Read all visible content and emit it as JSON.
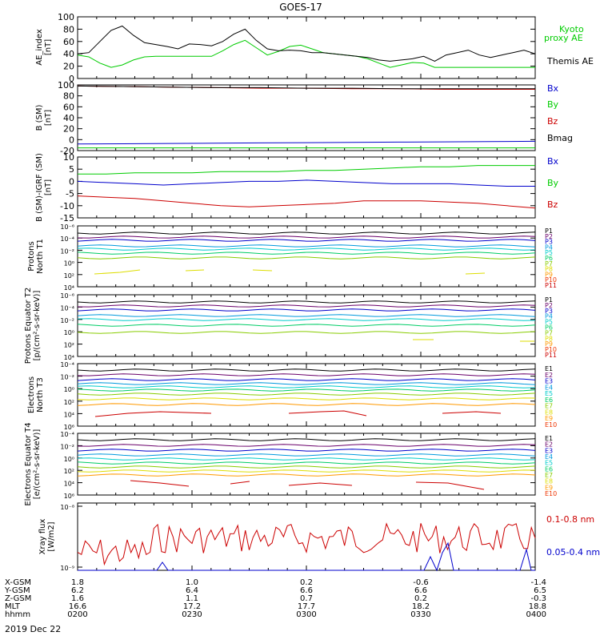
{
  "title": "GOES-17",
  "date_label": "2019 Dec 22",
  "ephemeris": {
    "row_labels": [
      "X-GSM",
      "Y-GSM",
      "Z-GSM",
      "MLT",
      "hhmm"
    ],
    "columns": [
      {
        "values": [
          "1.8",
          "6.2",
          "1.6",
          "16.6",
          "0200"
        ]
      },
      {
        "values": [
          "1.0",
          "6.4",
          "1.1",
          "17.2",
          "0230"
        ]
      },
      {
        "values": [
          "0.2",
          "6.6",
          "0.7",
          "17.7",
          "0300"
        ]
      },
      {
        "values": [
          "-0.6",
          "6.6",
          "0.2",
          "18.2",
          "0330"
        ]
      },
      {
        "values": [
          "-1.4",
          "6.5",
          "-0.3",
          "18.8",
          "0400"
        ]
      }
    ]
  },
  "colors": {
    "black": "#000000",
    "green": "#00cc00",
    "blue": "#0000cc",
    "red": "#cc0000",
    "spectrum": [
      "#000000",
      "#6a006a",
      "#0000cc",
      "#0099dd",
      "#00cccc",
      "#00cc66",
      "#88cc00",
      "#dddd00",
      "#ff9900",
      "#ee3300",
      "#cc0000"
    ]
  },
  "chart_data": [
    {
      "type": "line",
      "ylabel": "AE_index [nT]",
      "ylim": [
        0,
        100
      ],
      "yticks": [
        "0",
        "20",
        "40",
        "60",
        "80",
        "100"
      ],
      "x_range_hhmm": [
        "0200",
        "0400"
      ],
      "series": [
        {
          "name": "Kyoto proxy AE",
          "color": "green",
          "values": [
            38,
            35,
            25,
            18,
            22,
            30,
            35,
            36,
            36,
            36,
            36,
            36,
            36,
            45,
            55,
            62,
            50,
            38,
            44,
            52,
            54,
            48,
            42,
            40,
            38,
            36,
            32,
            25,
            18,
            22,
            26,
            25,
            18,
            18,
            18,
            18,
            18,
            18,
            18,
            18,
            18,
            18
          ]
        },
        {
          "name": "Themis AE",
          "color": "black",
          "values": [
            40,
            42,
            60,
            78,
            85,
            70,
            58,
            55,
            52,
            48,
            56,
            55,
            53,
            60,
            72,
            80,
            62,
            48,
            45,
            46,
            45,
            42,
            42,
            40,
            38,
            36,
            34,
            30,
            28,
            30,
            32,
            36,
            28,
            38,
            42,
            46,
            38,
            34,
            38,
            42,
            46,
            40
          ]
        }
      ]
    },
    {
      "type": "line",
      "ylabel": "B (SM) [nT]",
      "ylim": [
        -20,
        100
      ],
      "yticks": [
        "-20",
        "0",
        "20",
        "40",
        "60",
        "80",
        "100"
      ],
      "series": [
        {
          "name": "Bx",
          "color": "blue",
          "values": [
            -8,
            -7.5,
            -7,
            -6.5,
            -6,
            -5.5,
            -5,
            -4.5,
            -4,
            -3.5,
            -3
          ]
        },
        {
          "name": "By",
          "color": "green",
          "values": [
            -15,
            -15,
            -15,
            -15,
            -15,
            -15,
            -15,
            -15,
            -15,
            -15,
            -15
          ]
        },
        {
          "name": "Bz",
          "color": "red",
          "values": [
            98,
            97,
            96,
            95,
            94,
            94,
            93,
            93,
            92,
            92,
            92
          ]
        },
        {
          "name": "Bmag",
          "color": "black",
          "values": [
            98,
            97,
            96,
            95,
            95,
            94,
            94,
            93,
            93,
            93,
            93
          ]
        }
      ]
    },
    {
      "type": "line",
      "ylabel": "B (SM)-IGRF (SM) [nT]",
      "ylim": [
        -15,
        10
      ],
      "yticks": [
        "-15",
        "-10",
        "-5",
        "0",
        "5",
        "10"
      ],
      "series": [
        {
          "name": "Bx",
          "color": "blue",
          "values": [
            0,
            -0.5,
            -1,
            -1.5,
            -1,
            -0.5,
            0,
            0,
            0.5,
            0,
            -0.5,
            -1,
            -1,
            -1,
            -1.5,
            -2,
            -2
          ]
        },
        {
          "name": "By",
          "color": "green",
          "values": [
            3,
            3,
            3.5,
            3.5,
            3.5,
            4,
            4,
            4,
            4.5,
            4.5,
            5,
            5.5,
            6,
            6,
            6.5,
            6.5,
            6.5
          ]
        },
        {
          "name": "Bz",
          "color": "red",
          "values": [
            -6,
            -6.5,
            -7,
            -8,
            -9,
            -10,
            -10.5,
            -10,
            -9.5,
            -9,
            -8,
            -8,
            -8,
            -8.5,
            -9,
            -10,
            -11
          ]
        }
      ]
    },
    {
      "type": "line",
      "ylabel": "Protons North T1",
      "ylog": true,
      "yticks": [
        "10⁴",
        "10²",
        "10⁰",
        "10⁻²",
        "10⁻⁴",
        "10⁻⁶"
      ],
      "channels": [
        "P1",
        "P2",
        "P3",
        "P4",
        "P5",
        "P6",
        "P7",
        "P8",
        "P9",
        "P10",
        "P11"
      ]
    },
    {
      "type": "line",
      "ylabel": "Protons Equator T2 [p/(cm²-s-sr-keV)]",
      "ylog": true,
      "yticks": [
        "10⁴",
        "10²",
        "10⁰",
        "10⁻²",
        "10⁻⁴",
        "10⁻⁶"
      ],
      "channels": [
        "P1",
        "P2",
        "P3",
        "P4",
        "P5",
        "P6",
        "P7",
        "P8",
        "P9",
        "P10",
        "P11"
      ]
    },
    {
      "type": "line",
      "ylabel": "Electrons North T3",
      "ylog": true,
      "yticks": [
        "10⁶",
        "10⁴",
        "10²",
        "10⁰",
        "10⁻²",
        "10⁻⁴"
      ],
      "channels": [
        "E1",
        "E2",
        "E3",
        "E4",
        "E5",
        "E6",
        "E7",
        "E8",
        "E9",
        "E10"
      ]
    },
    {
      "type": "line",
      "ylabel": "Electrons Equator T4 [e/(cm²-s-sr-keV)]",
      "ylog": true,
      "yticks": [
        "10⁶",
        "10⁴",
        "10²",
        "10⁰",
        "10⁻²",
        "10⁻⁴"
      ],
      "channels": [
        "E1",
        "E2",
        "E3",
        "E4",
        "E5",
        "E6",
        "E7",
        "E8",
        "E9",
        "E10"
      ]
    },
    {
      "type": "line",
      "ylabel": "Xray flux [W/m2]",
      "ylog": true,
      "yticks": [
        "10⁻⁸",
        "10⁻⁹"
      ],
      "series": [
        {
          "name": "0.1-0.8 nm",
          "color": "red"
        },
        {
          "name": "0.05-0.4 nm",
          "color": "blue"
        }
      ]
    }
  ]
}
